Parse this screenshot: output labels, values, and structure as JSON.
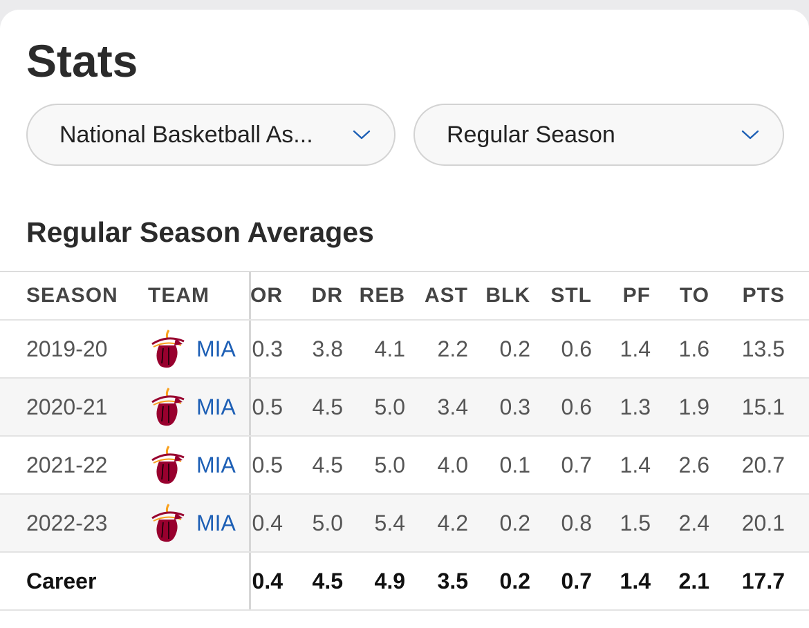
{
  "title": "Stats",
  "filters": {
    "league": "National Basketball As...",
    "season_type": "Regular Season"
  },
  "section_title": "Regular Season Averages",
  "columns": {
    "season": "SEASON",
    "team": "TEAM",
    "or": "OR",
    "dr": "DR",
    "reb": "REB",
    "ast": "AST",
    "blk": "BLK",
    "stl": "STL",
    "pf": "PF",
    "to": "TO",
    "pts": "PTS"
  },
  "rows": [
    {
      "season": "2019-20",
      "team": "MIA",
      "or": "0.3",
      "dr": "3.8",
      "reb": "4.1",
      "ast": "2.2",
      "blk": "0.2",
      "stl": "0.6",
      "pf": "1.4",
      "to": "1.6",
      "pts": "13.5"
    },
    {
      "season": "2020-21",
      "team": "MIA",
      "or": "0.5",
      "dr": "4.5",
      "reb": "5.0",
      "ast": "3.4",
      "blk": "0.3",
      "stl": "0.6",
      "pf": "1.3",
      "to": "1.9",
      "pts": "15.1"
    },
    {
      "season": "2021-22",
      "team": "MIA",
      "or": "0.5",
      "dr": "4.5",
      "reb": "5.0",
      "ast": "4.0",
      "blk": "0.1",
      "stl": "0.7",
      "pf": "1.4",
      "to": "2.6",
      "pts": "20.7"
    },
    {
      "season": "2022-23",
      "team": "MIA",
      "or": "0.4",
      "dr": "5.0",
      "reb": "5.4",
      "ast": "4.2",
      "blk": "0.2",
      "stl": "0.8",
      "pf": "1.5",
      "to": "2.4",
      "pts": "20.1"
    }
  ],
  "career": {
    "label": "Career",
    "or": "0.4",
    "dr": "4.5",
    "reb": "4.9",
    "ast": "3.5",
    "blk": "0.2",
    "stl": "0.7",
    "pf": "1.4",
    "to": "2.1",
    "pts": "17.7"
  },
  "icons": {
    "dropdown": "chevron-down-icon",
    "team_logo": "miami-heat-logo-icon"
  },
  "colors": {
    "accent": "#1d5fb5",
    "logo_red": "#98002e",
    "logo_yellow": "#f9a01b"
  }
}
